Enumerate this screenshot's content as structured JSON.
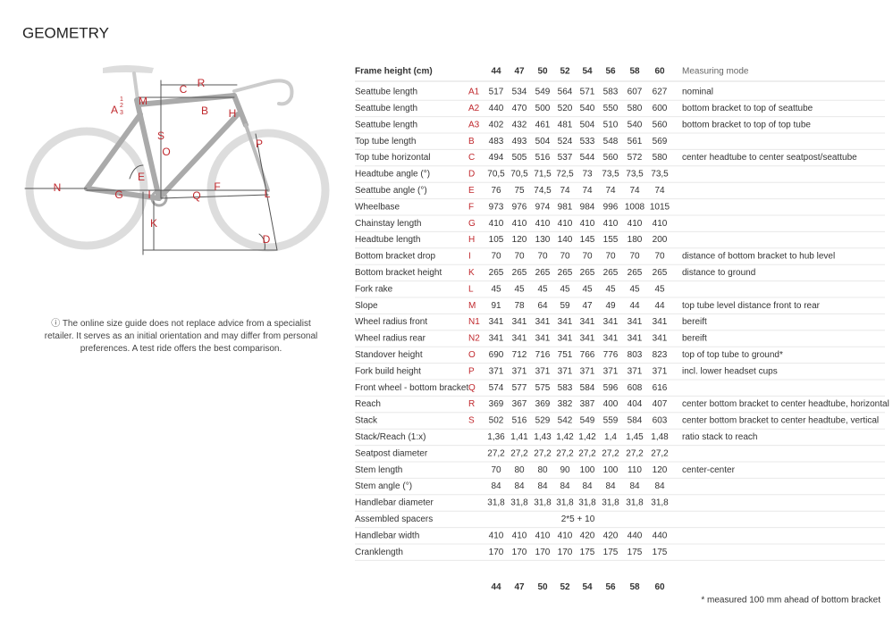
{
  "title": "GEOMETRY",
  "diagram": {
    "labels": [
      "R",
      "C",
      "A",
      "1",
      "2",
      "3",
      "M",
      "B",
      "H",
      "S",
      "O",
      "P",
      "E",
      "N",
      "G",
      "I",
      "Q",
      "F",
      "L",
      "K",
      "D"
    ]
  },
  "info": "ⓘ The online size guide does not replace advice from a specialist retailer. It serves as an initial orientation and may differ from personal preferences. A test ride offers the best comparison.",
  "table": {
    "header": {
      "label": "Frame height (cm)",
      "sizes": [
        "44",
        "47",
        "50",
        "52",
        "54",
        "56",
        "58",
        "60"
      ],
      "mode": "Measuring mode"
    },
    "rows": [
      {
        "name": "Seattube length",
        "code": "A1",
        "values": [
          "517",
          "534",
          "549",
          "564",
          "571",
          "583",
          "607",
          "627"
        ],
        "mode": "nominal"
      },
      {
        "name": "Seattube length",
        "code": "A2",
        "values": [
          "440",
          "470",
          "500",
          "520",
          "540",
          "550",
          "580",
          "600"
        ],
        "mode": "bottom bracket to top of seattube"
      },
      {
        "name": "Seattube length",
        "code": "A3",
        "values": [
          "402",
          "432",
          "461",
          "481",
          "504",
          "510",
          "540",
          "560"
        ],
        "mode": "bottom bracket to top of top tube"
      },
      {
        "name": "Top tube length",
        "code": "B",
        "values": [
          "483",
          "493",
          "504",
          "524",
          "533",
          "548",
          "561",
          "569"
        ]
      },
      {
        "name": "Top tube horizontal",
        "code": "C",
        "values": [
          "494",
          "505",
          "516",
          "537",
          "544",
          "560",
          "572",
          "580"
        ],
        "mode": "center headtube to center seatpost/seattube"
      },
      {
        "name": "Headtube angle (°)",
        "code": "D",
        "values": [
          "70,5",
          "70,5",
          "71,5",
          "72,5",
          "73",
          "73,5",
          "73,5",
          "73,5"
        ]
      },
      {
        "name": "Seattube angle (°)",
        "code": "E",
        "values": [
          "76",
          "75",
          "74,5",
          "74",
          "74",
          "74",
          "74",
          "74"
        ]
      },
      {
        "name": "Wheelbase",
        "code": "F",
        "values": [
          "973",
          "976",
          "974",
          "981",
          "984",
          "996",
          "1008",
          "1015"
        ]
      },
      {
        "name": "Chainstay length",
        "code": "G",
        "values": [
          "410",
          "410",
          "410",
          "410",
          "410",
          "410",
          "410",
          "410"
        ]
      },
      {
        "name": "Headtube length",
        "code": "H",
        "values": [
          "105",
          "120",
          "130",
          "140",
          "145",
          "155",
          "180",
          "200"
        ]
      },
      {
        "name": "Bottom bracket drop",
        "code": "I",
        "values": [
          "70",
          "70",
          "70",
          "70",
          "70",
          "70",
          "70",
          "70"
        ],
        "mode": "distance of bottom bracket to hub level"
      },
      {
        "name": "Bottom bracket height",
        "code": "K",
        "values": [
          "265",
          "265",
          "265",
          "265",
          "265",
          "265",
          "265",
          "265"
        ],
        "mode": "distance to ground"
      },
      {
        "name": "Fork rake",
        "code": "L",
        "values": [
          "45",
          "45",
          "45",
          "45",
          "45",
          "45",
          "45",
          "45"
        ]
      },
      {
        "name": "Slope",
        "code": "M",
        "values": [
          "91",
          "78",
          "64",
          "59",
          "47",
          "49",
          "44",
          "44"
        ],
        "mode": "top tube level distance front to rear"
      },
      {
        "name": "Wheel radius front",
        "code": "N1",
        "values": [
          "341",
          "341",
          "341",
          "341",
          "341",
          "341",
          "341",
          "341"
        ],
        "mode": "bereift"
      },
      {
        "name": "Wheel radius rear",
        "code": "N2",
        "values": [
          "341",
          "341",
          "341",
          "341",
          "341",
          "341",
          "341",
          "341"
        ],
        "mode": "bereift"
      },
      {
        "name": "Standover height",
        "code": "O",
        "values": [
          "690",
          "712",
          "716",
          "751",
          "766",
          "776",
          "803",
          "823"
        ],
        "mode": "top of top tube to ground*"
      },
      {
        "name": "Fork build height",
        "code": "P",
        "values": [
          "371",
          "371",
          "371",
          "371",
          "371",
          "371",
          "371",
          "371"
        ],
        "mode": "incl. lower headset cups"
      },
      {
        "name": "Front wheel - bottom bracket",
        "code": "Q",
        "values": [
          "574",
          "577",
          "575",
          "583",
          "584",
          "596",
          "608",
          "616"
        ]
      },
      {
        "name": "Reach",
        "code": "R",
        "values": [
          "369",
          "367",
          "369",
          "382",
          "387",
          "400",
          "404",
          "407"
        ],
        "mode": "center bottom bracket to center headtube, horizontal"
      },
      {
        "name": "Stack",
        "code": "S",
        "values": [
          "502",
          "516",
          "529",
          "542",
          "549",
          "559",
          "584",
          "603"
        ],
        "mode": "center bottom bracket to center headtube, vertical"
      },
      {
        "name": "Stack/Reach (1:x)",
        "values": [
          "1,36",
          "1,41",
          "1,43",
          "1,42",
          "1,42",
          "1,4",
          "1,45",
          "1,48"
        ],
        "mode": "ratio stack to reach"
      },
      {
        "name": "Seatpost diameter",
        "values": [
          "27,2",
          "27,2",
          "27,2",
          "27,2",
          "27,2",
          "27,2",
          "27,2",
          "27,2"
        ]
      },
      {
        "name": "Stem length",
        "values": [
          "70",
          "80",
          "80",
          "90",
          "100",
          "100",
          "110",
          "120"
        ],
        "mode": "center-center"
      },
      {
        "name": "Stem angle (°)",
        "values": [
          "84",
          "84",
          "84",
          "84",
          "84",
          "84",
          "84",
          "84"
        ]
      },
      {
        "name": "Handlebar diameter",
        "values": [
          "31,8",
          "31,8",
          "31,8",
          "31,8",
          "31,8",
          "31,8",
          "31,8",
          "31,8"
        ]
      },
      {
        "name": "Assembled spacers",
        "span": "2*5 + 10"
      },
      {
        "name": "Handlebar width",
        "values": [
          "410",
          "410",
          "410",
          "410",
          "420",
          "420",
          "440",
          "440"
        ]
      },
      {
        "name": "Cranklength",
        "values": [
          "170",
          "170",
          "170",
          "170",
          "175",
          "175",
          "175",
          "175"
        ]
      }
    ]
  },
  "footnote": "* measured 100 mm ahead of bottom bracket"
}
